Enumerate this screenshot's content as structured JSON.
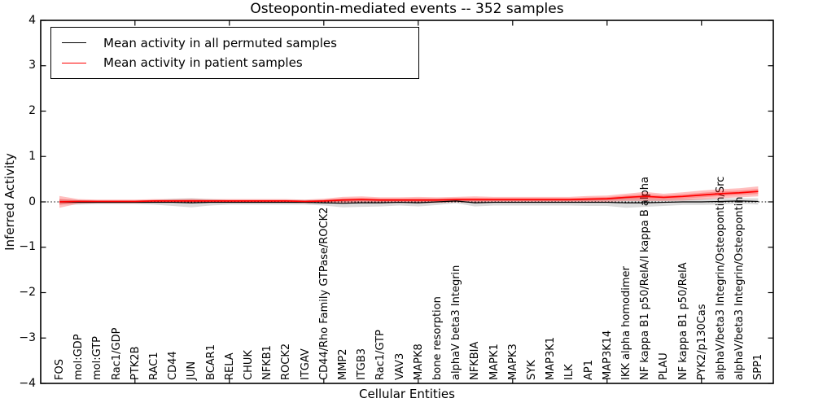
{
  "figure": {
    "title": "Osteopontin-mediated events -- 352 samples",
    "xlabel": "Cellular Entities",
    "ylabel": "Inferred Activity"
  },
  "legend": {
    "items": [
      {
        "label": "Mean activity in all permuted samples",
        "color": "#000000"
      },
      {
        "label": "Mean activity in patient samples",
        "color": "#ff0000"
      }
    ]
  },
  "axes": {
    "yticks": [
      {
        "label": "4",
        "value": 4
      },
      {
        "label": "3",
        "value": 3
      },
      {
        "label": "2",
        "value": 2
      },
      {
        "label": "1",
        "value": 1
      },
      {
        "label": "0",
        "value": 0
      },
      {
        "label": "−1",
        "value": -1
      },
      {
        "label": "−2",
        "value": -2
      },
      {
        "label": "−3",
        "value": -3
      },
      {
        "label": "−4",
        "value": -4
      }
    ]
  },
  "chart_data": {
    "type": "line",
    "title": "Osteopontin-mediated events -- 352 samples",
    "xlabel": "Cellular Entities",
    "ylabel": "Inferred Activity",
    "ylim": [
      -4,
      4
    ],
    "grid": false,
    "legend_position": "upper left",
    "zero_reference_line": "dotted black at y=0",
    "categories": [
      "FOS",
      "mol:GDP",
      "mol:GTP",
      "Rac1/GDP",
      "PTK2B",
      "RAC1",
      "CD44",
      "JUN",
      "BCAR1",
      "RELA",
      "CHUK",
      "NFKB1",
      "ROCK2",
      "ITGAV",
      "CD44/Rho Family GTPase/ROCK2",
      "MMP2",
      "ITGB3",
      "Rac1/GTP",
      "VAV3",
      "MAPK8",
      "bone resorption",
      "alphaV beta3 Integrin",
      "NFKBIA",
      "MAPK1",
      "MAPK3",
      "SYK",
      "MAP3K1",
      "ILK",
      "AP1",
      "MAP3K14",
      "IKK alpha homodimer",
      "NF kappa B1 p50/RelA/I kappa B alpha",
      "PLAU",
      "NF kappa B1 p50/RelA",
      "PYK2/p130Cas",
      "alphaV/beta3 Integrin/Osteopontin/Src",
      "alphaV/beta3 Integrin/Osteopontin",
      "SPP1"
    ],
    "series": [
      {
        "name": "Mean activity in all permuted samples",
        "color": "#000000",
        "band_color": "rgba(90,90,90,0.22)",
        "values": [
          0.0,
          -0.01,
          -0.01,
          -0.01,
          -0.01,
          -0.01,
          -0.01,
          -0.02,
          -0.01,
          -0.01,
          -0.01,
          -0.01,
          -0.01,
          -0.01,
          -0.02,
          -0.03,
          -0.02,
          -0.02,
          -0.01,
          -0.02,
          0.0,
          0.02,
          -0.02,
          -0.01,
          -0.01,
          -0.01,
          -0.01,
          -0.01,
          -0.01,
          -0.01,
          -0.02,
          -0.02,
          -0.01,
          0.0,
          0.0,
          0.01,
          0.02,
          0.01
        ],
        "band_halfwidth": [
          0.05,
          0.05,
          0.04,
          0.04,
          0.04,
          0.05,
          0.08,
          0.1,
          0.07,
          0.05,
          0.05,
          0.05,
          0.05,
          0.05,
          0.06,
          0.09,
          0.09,
          0.08,
          0.07,
          0.08,
          0.07,
          0.05,
          0.08,
          0.07,
          0.07,
          0.07,
          0.07,
          0.07,
          0.08,
          0.08,
          0.11,
          0.09,
          0.08,
          0.07,
          0.07,
          0.07,
          0.06,
          0.07
        ]
      },
      {
        "name": "Mean activity in patient samples",
        "color": "#ff0000",
        "band_color": "rgba(255,0,0,0.25)",
        "values": [
          0.0,
          0.01,
          0.01,
          0.01,
          0.01,
          0.02,
          0.02,
          0.02,
          0.02,
          0.02,
          0.02,
          0.02,
          0.02,
          0.01,
          0.02,
          0.04,
          0.05,
          0.04,
          0.04,
          0.04,
          0.04,
          0.05,
          0.05,
          0.05,
          0.05,
          0.05,
          0.05,
          0.05,
          0.06,
          0.07,
          0.1,
          0.12,
          0.1,
          0.12,
          0.15,
          0.18,
          0.2,
          0.23
        ],
        "band_halfwidth": [
          0.13,
          0.05,
          0.04,
          0.04,
          0.04,
          0.04,
          0.04,
          0.05,
          0.04,
          0.04,
          0.04,
          0.04,
          0.04,
          0.04,
          0.05,
          0.07,
          0.07,
          0.06,
          0.06,
          0.07,
          0.06,
          0.06,
          0.07,
          0.06,
          0.06,
          0.06,
          0.06,
          0.06,
          0.07,
          0.07,
          0.08,
          0.1,
          0.08,
          0.09,
          0.1,
          0.1,
          0.1,
          0.11
        ]
      }
    ]
  }
}
